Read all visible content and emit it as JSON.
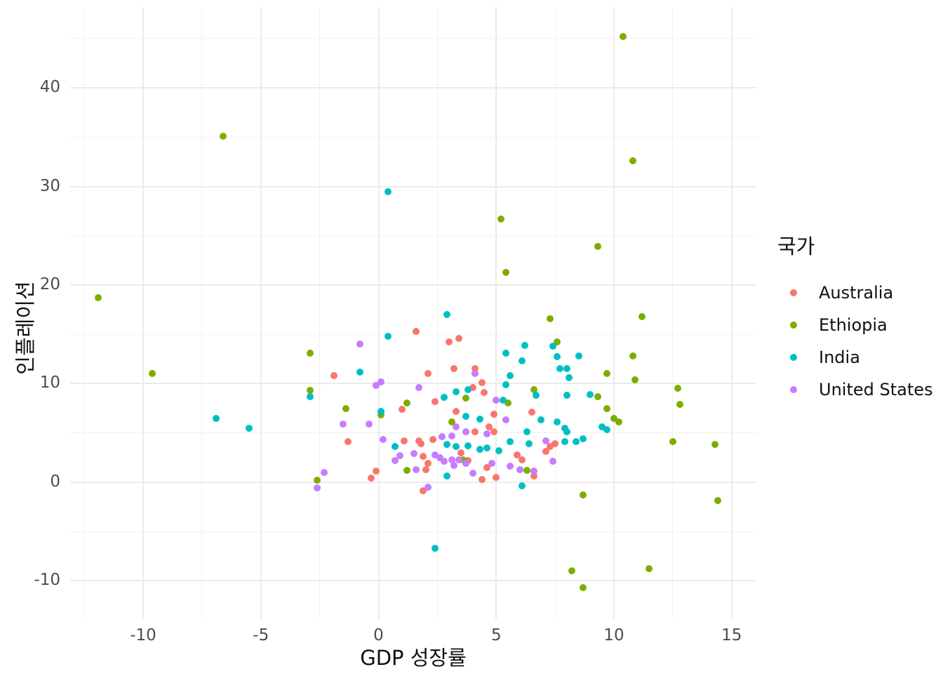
{
  "chart_data": {
    "type": "scatter",
    "title": "",
    "xlabel": "GDP 성장률",
    "ylabel": "인플레이션",
    "legend_title": "국가",
    "grid": "on",
    "legend_position": "right",
    "x_axis": {
      "domain": [
        -13.1,
        16.05
      ],
      "ticks": [
        -10,
        -5,
        0,
        5,
        10,
        15
      ],
      "tick_labels": [
        "-10",
        "-5",
        "0",
        "5",
        "10",
        "15"
      ],
      "minor_ticks": [
        -12.5,
        -7.5,
        -2.5,
        2.5,
        7.5,
        12.5
      ]
    },
    "y_axis": {
      "domain": [
        -13.9,
        48.2
      ],
      "ticks": [
        -10,
        0,
        10,
        20,
        30,
        40
      ],
      "tick_labels": [
        "-10",
        "0",
        "10",
        "20",
        "30",
        "40"
      ],
      "minor_ticks": [
        -5,
        5,
        15,
        25,
        35,
        45
      ]
    },
    "series": [
      {
        "name": "Australia",
        "color": "#F8766D",
        "points": [
          [
            1.6,
            15.3
          ],
          [
            3.4,
            14.6
          ],
          [
            3.0,
            14.2
          ],
          [
            3.2,
            11.5
          ],
          [
            4.1,
            11.5
          ],
          [
            2.1,
            11.0
          ],
          [
            -1.9,
            10.8
          ],
          [
            4.4,
            10.1
          ],
          [
            4.0,
            9.6
          ],
          [
            4.5,
            9.1
          ],
          [
            2.4,
            8.2
          ],
          [
            1.0,
            7.4
          ],
          [
            3.3,
            7.2
          ],
          [
            6.5,
            7.1
          ],
          [
            4.9,
            6.9
          ],
          [
            4.7,
            5.6
          ],
          [
            4.9,
            5.1
          ],
          [
            4.1,
            5.1
          ],
          [
            2.3,
            4.3
          ],
          [
            1.1,
            4.2
          ],
          [
            1.7,
            4.2
          ],
          [
            1.8,
            3.9
          ],
          [
            -1.3,
            4.1
          ],
          [
            7.5,
            3.9
          ],
          [
            7.3,
            3.6
          ],
          [
            7.1,
            3.1
          ],
          [
            3.5,
            3.0
          ],
          [
            5.9,
            2.8
          ],
          [
            1.9,
            2.6
          ],
          [
            6.1,
            2.3
          ],
          [
            3.8,
            2.2
          ],
          [
            2.1,
            1.9
          ],
          [
            4.6,
            1.5
          ],
          [
            2.0,
            1.3
          ],
          [
            -0.1,
            1.1
          ],
          [
            6.6,
            0.6
          ],
          [
            5.0,
            0.5
          ],
          [
            -0.3,
            0.4
          ],
          [
            4.4,
            0.3
          ],
          [
            1.9,
            -0.9
          ]
        ]
      },
      {
        "name": "Ethiopia",
        "color": "#7CAE00",
        "points": [
          [
            10.4,
            45.2
          ],
          [
            -6.6,
            35.1
          ],
          [
            10.8,
            32.6
          ],
          [
            5.2,
            26.7
          ],
          [
            9.3,
            23.9
          ],
          [
            5.4,
            21.3
          ],
          [
            -11.9,
            18.7
          ],
          [
            11.2,
            16.8
          ],
          [
            7.3,
            16.6
          ],
          [
            7.6,
            14.2
          ],
          [
            -2.9,
            13.1
          ],
          [
            10.8,
            12.8
          ],
          [
            -9.6,
            11.0
          ],
          [
            9.7,
            11.0
          ],
          [
            10.9,
            10.4
          ],
          [
            12.7,
            9.5
          ],
          [
            6.6,
            9.4
          ],
          [
            -2.9,
            9.3
          ],
          [
            9.3,
            8.7
          ],
          [
            3.7,
            8.5
          ],
          [
            1.2,
            8.0
          ],
          [
            5.5,
            8.0
          ],
          [
            12.8,
            7.9
          ],
          [
            -1.4,
            7.5
          ],
          [
            9.7,
            7.5
          ],
          [
            0.1,
            6.8
          ],
          [
            10.0,
            6.5
          ],
          [
            10.2,
            6.1
          ],
          [
            3.1,
            6.1
          ],
          [
            12.5,
            4.1
          ],
          [
            14.3,
            3.8
          ],
          [
            3.6,
            2.3
          ],
          [
            6.3,
            1.2
          ],
          [
            1.2,
            1.2
          ],
          [
            -2.6,
            0.2
          ],
          [
            8.7,
            -1.3
          ],
          [
            14.4,
            -1.9
          ],
          [
            8.2,
            -9.0
          ],
          [
            11.5,
            -8.8
          ],
          [
            8.7,
            -10.7
          ]
        ]
      },
      {
        "name": "India",
        "color": "#00BFC4",
        "points": [
          [
            0.4,
            29.5
          ],
          [
            2.9,
            17.0
          ],
          [
            0.4,
            14.8
          ],
          [
            6.2,
            13.9
          ],
          [
            7.4,
            13.8
          ],
          [
            5.4,
            13.1
          ],
          [
            8.5,
            12.8
          ],
          [
            7.6,
            12.7
          ],
          [
            6.1,
            12.3
          ],
          [
            7.7,
            11.5
          ],
          [
            8.0,
            11.5
          ],
          [
            -0.8,
            11.2
          ],
          [
            5.6,
            10.8
          ],
          [
            8.1,
            10.6
          ],
          [
            5.4,
            9.9
          ],
          [
            3.8,
            9.4
          ],
          [
            3.3,
            9.2
          ],
          [
            9.0,
            8.9
          ],
          [
            6.7,
            8.8
          ],
          [
            8.0,
            8.8
          ],
          [
            -2.9,
            8.7
          ],
          [
            2.8,
            8.6
          ],
          [
            5.3,
            8.3
          ],
          [
            0.1,
            7.2
          ],
          [
            3.7,
            6.7
          ],
          [
            -6.9,
            6.5
          ],
          [
            4.3,
            6.4
          ],
          [
            6.9,
            6.3
          ],
          [
            7.6,
            6.1
          ],
          [
            9.5,
            5.6
          ],
          [
            -5.5,
            5.5
          ],
          [
            7.9,
            5.5
          ],
          [
            9.7,
            5.3
          ],
          [
            6.3,
            5.1
          ],
          [
            8.0,
            5.1
          ],
          [
            8.7,
            4.4
          ],
          [
            7.9,
            4.1
          ],
          [
            8.4,
            4.1
          ],
          [
            5.6,
            4.1
          ],
          [
            6.4,
            3.9
          ],
          [
            2.9,
            3.8
          ],
          [
            3.8,
            3.7
          ],
          [
            0.7,
            3.6
          ],
          [
            3.3,
            3.6
          ],
          [
            4.6,
            3.5
          ],
          [
            4.3,
            3.3
          ],
          [
            5.1,
            3.2
          ],
          [
            2.9,
            0.6
          ],
          [
            6.1,
            -0.4
          ],
          [
            2.4,
            -6.7
          ]
        ]
      },
      {
        "name": "United States",
        "color": "#C77CFF",
        "points": [
          [
            -0.8,
            14.0
          ],
          [
            4.1,
            11.0
          ],
          [
            0.1,
            10.2
          ],
          [
            -0.1,
            9.8
          ],
          [
            1.7,
            9.6
          ],
          [
            5.0,
            8.3
          ],
          [
            5.4,
            6.3
          ],
          [
            -1.5,
            5.9
          ],
          [
            -0.4,
            5.9
          ],
          [
            3.3,
            5.6
          ],
          [
            3.7,
            5.1
          ],
          [
            4.6,
            4.9
          ],
          [
            3.1,
            4.7
          ],
          [
            2.7,
            4.6
          ],
          [
            0.2,
            4.3
          ],
          [
            7.1,
            4.2
          ],
          [
            1.5,
            2.9
          ],
          [
            0.9,
            2.7
          ],
          [
            2.4,
            2.8
          ],
          [
            2.6,
            2.5
          ],
          [
            3.4,
            2.3
          ],
          [
            3.1,
            2.3
          ],
          [
            2.8,
            2.1
          ],
          [
            3.2,
            1.7
          ],
          [
            3.7,
            1.9
          ],
          [
            0.7,
            2.2
          ],
          [
            7.4,
            2.1
          ],
          [
            4.8,
            1.9
          ],
          [
            5.6,
            1.6
          ],
          [
            1.6,
            1.3
          ],
          [
            6.0,
            1.3
          ],
          [
            6.6,
            1.1
          ],
          [
            -2.3,
            1.0
          ],
          [
            4.0,
            0.9
          ],
          [
            -2.6,
            -0.6
          ],
          [
            2.1,
            -0.5
          ]
        ]
      }
    ]
  }
}
